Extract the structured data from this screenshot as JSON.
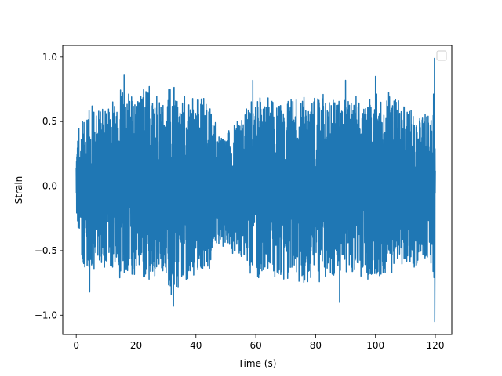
{
  "chart_data": {
    "type": "line",
    "title": "",
    "xlabel": "Time (s)",
    "ylabel": "Strain",
    "xlim": [
      -4.5,
      125.5
    ],
    "ylim": [
      -1.15,
      1.09
    ],
    "xticks": [
      0,
      20,
      40,
      60,
      80,
      100,
      120
    ],
    "xtick_labels": [
      "0",
      "20",
      "40",
      "60",
      "80",
      "100",
      "120"
    ],
    "yticks": [
      -1.0,
      -0.5,
      0.0,
      0.5,
      1.0
    ],
    "ytick_labels": [
      "−1.0",
      "−0.5",
      "0.0",
      "0.5",
      "1.0"
    ],
    "grid": false,
    "legend": {
      "position": "upper right",
      "entries": []
    },
    "series": [
      {
        "color": "#1f77b4",
        "x_range": [
          0,
          120
        ],
        "samples": 2400,
        "envelope": {
          "x": [
            0,
            2,
            5,
            8,
            12,
            16,
            20,
            24,
            28,
            32,
            36,
            40,
            44,
            48,
            52,
            56,
            60,
            64,
            68,
            72,
            76,
            80,
            84,
            88,
            92,
            96,
            100,
            104,
            108,
            112,
            116,
            119,
            119.8,
            120
          ],
          "upper": [
            0.45,
            0.62,
            0.68,
            0.6,
            0.7,
            0.8,
            0.72,
            0.85,
            0.72,
            0.82,
            0.7,
            0.76,
            0.74,
            0.4,
            0.52,
            0.6,
            0.68,
            0.75,
            0.62,
            0.72,
            0.65,
            0.75,
            0.68,
            0.72,
            0.78,
            0.62,
            0.78,
            0.72,
            0.68,
            0.64,
            0.55,
            0.6,
            0.99,
            0.28
          ],
          "lower": [
            -0.3,
            -0.6,
            -0.82,
            -0.62,
            -0.7,
            -0.75,
            -0.68,
            -0.8,
            -0.65,
            -0.93,
            -0.72,
            -0.78,
            -0.7,
            -0.45,
            -0.55,
            -0.65,
            -0.78,
            -0.7,
            -0.75,
            -0.8,
            -0.88,
            -0.75,
            -0.82,
            -0.7,
            -0.68,
            -0.82,
            -0.7,
            -0.75,
            -0.72,
            -0.68,
            -0.65,
            -0.62,
            -1.05,
            -0.3
          ]
        },
        "peaks": [
          {
            "x": 2.5,
            "y": -0.6
          },
          {
            "x": 4.5,
            "y": -0.82
          },
          {
            "x": 16.0,
            "y": 0.86
          },
          {
            "x": 32.5,
            "y": -0.93
          },
          {
            "x": 59.0,
            "y": 0.82
          },
          {
            "x": 88.0,
            "y": -0.9
          },
          {
            "x": 90.0,
            "y": 0.82
          },
          {
            "x": 100.0,
            "y": 0.85
          },
          {
            "x": 119.7,
            "y": 0.99
          },
          {
            "x": 119.8,
            "y": -1.05
          }
        ]
      }
    ]
  }
}
